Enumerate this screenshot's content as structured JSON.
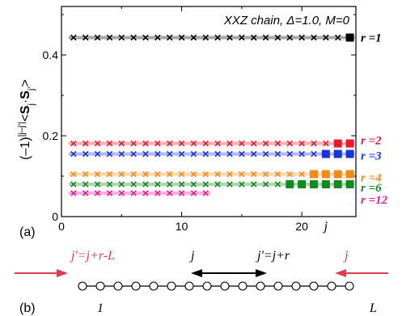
{
  "chart_data": {
    "type": "scatter",
    "title": "XXZ chain, Δ=1.0, M=0",
    "panel_label": "(a)",
    "ylabel_parts": [
      "(–1)",
      "|j–j'|",
      "<",
      "S",
      "j",
      "·",
      "S",
      "j'",
      ">"
    ],
    "xlim": [
      0,
      24.5
    ],
    "ylim": [
      0,
      0.52
    ],
    "x_ticks": [
      "0",
      "10",
      "20"
    ],
    "x_tick_values": [
      0,
      10,
      20
    ],
    "x_extra_label": "j",
    "x_extra_label_value": 22,
    "y_ticks": [
      "0",
      "0.2",
      "0.4"
    ],
    "y_tick_values": [
      0,
      0.2,
      0.4
    ],
    "series": [
      {
        "name": "r =1",
        "color": "#000000",
        "value": 0.443,
        "cross_x_start": 1,
        "cross_x_end": 23,
        "square_x": [
          24
        ]
      },
      {
        "name": "r =2",
        "color": "#e8192c",
        "value": 0.181,
        "cross_x_start": 1,
        "cross_x_end": 22,
        "square_x": [
          23,
          24
        ]
      },
      {
        "name": "r =3",
        "color": "#1a33d6",
        "value": 0.155,
        "cross_x_start": 1,
        "cross_x_end": 21,
        "square_x": [
          22,
          23,
          24
        ]
      },
      {
        "name": "r =4",
        "color": "#f28a1a",
        "value": 0.105,
        "cross_x_start": 1,
        "cross_x_end": 20,
        "square_x": [
          21,
          22,
          23,
          24
        ]
      },
      {
        "name": "r =6",
        "color": "#118a1e",
        "value": 0.08,
        "cross_x_start": 1,
        "cross_x_end": 18,
        "square_x": [
          19,
          20,
          21,
          22,
          23,
          24
        ]
      },
      {
        "name": "r =12",
        "color": "#e8199a",
        "value": 0.058,
        "cross_x_start": 1,
        "cross_x_end": 12,
        "square_x": []
      }
    ]
  },
  "diagram": {
    "panel_label": "(b)",
    "left_label": "j'=j+r-L",
    "center_label": "j",
    "right_label": "j'=j+r",
    "far_right_label": "j",
    "site_start_label": "1",
    "site_end_label": "L",
    "site_count": 16,
    "arrow_color": "#e23b4e"
  }
}
